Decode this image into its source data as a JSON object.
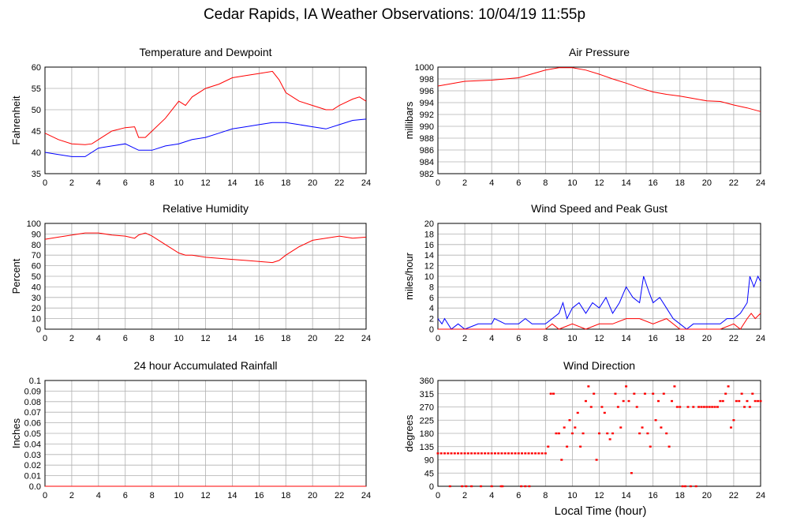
{
  "title": "Cedar Rapids, IA Weather Observations: 10/04/19 11:55p",
  "xlabel": "Local Time (hour)",
  "colors": {
    "red": "#ff0000",
    "blue": "#0000ff",
    "grid": "#b0b0b0"
  },
  "chart_data": [
    {
      "type": "line",
      "title": "Temperature and Dewpoint",
      "ylabel": "Fahrenheit",
      "xlim": [
        0,
        24
      ],
      "ylim": [
        35,
        60
      ],
      "yticks": [
        "35",
        "40",
        "45",
        "50",
        "55",
        "60"
      ],
      "xticks": [
        "0",
        "2",
        "4",
        "6",
        "8",
        "10",
        "12",
        "14",
        "16",
        "18",
        "20",
        "22",
        "24"
      ],
      "grid": true,
      "series": [
        {
          "color": "red",
          "x": [
            0,
            1,
            2,
            3,
            3.5,
            4,
            5,
            6,
            6.7,
            7,
            7.5,
            8,
            9,
            10,
            10.5,
            11,
            12,
            13,
            14,
            15,
            16,
            17,
            17.5,
            18,
            19,
            20,
            21,
            21.5,
            22,
            23,
            23.5,
            24
          ],
          "y": [
            44.5,
            43,
            42,
            41.8,
            42,
            43,
            45,
            45.8,
            46,
            43.5,
            43.5,
            45,
            48,
            52,
            51,
            53,
            55,
            56,
            57.5,
            58,
            58.5,
            59,
            57,
            54,
            52,
            51,
            50,
            50,
            51,
            52.5,
            53,
            52
          ]
        },
        {
          "color": "blue",
          "x": [
            0,
            1,
            2,
            3,
            4,
            5,
            6,
            7,
            8,
            9,
            10,
            11,
            12,
            13,
            14,
            15,
            16,
            17,
            18,
            19,
            20,
            21,
            22,
            23,
            24
          ],
          "y": [
            40,
            39.5,
            39,
            39,
            41,
            41.5,
            42,
            40.5,
            40.5,
            41.5,
            42,
            43,
            43.5,
            44.5,
            45.5,
            46,
            46.5,
            47,
            47,
            46.5,
            46,
            45.5,
            46.5,
            47.5,
            47.8
          ]
        }
      ]
    },
    {
      "type": "line",
      "title": "Air Pressure",
      "ylabel": "millibars",
      "xlim": [
        0,
        24
      ],
      "ylim": [
        982,
        1000
      ],
      "yticks": [
        "982",
        "984",
        "986",
        "988",
        "990",
        "992",
        "994",
        "996",
        "998",
        "1000"
      ],
      "xticks": [
        "0",
        "2",
        "4",
        "6",
        "8",
        "10",
        "12",
        "14",
        "16",
        "18",
        "20",
        "22",
        "24"
      ],
      "grid": true,
      "series": [
        {
          "color": "red",
          "x": [
            0,
            2,
            4,
            6,
            8,
            9,
            10,
            11,
            12,
            13,
            14,
            15,
            16,
            17,
            18,
            19,
            20,
            21,
            22,
            23,
            24
          ],
          "y": [
            996.8,
            997.6,
            997.8,
            998.2,
            999.5,
            999.9,
            999.9,
            999.5,
            998.8,
            998.0,
            997.3,
            996.5,
            995.8,
            995.4,
            995.1,
            994.7,
            994.3,
            994.2,
            993.6,
            993.1,
            992.5
          ]
        }
      ]
    },
    {
      "type": "line",
      "title": "Relative Humidity",
      "ylabel": "Percent",
      "xlim": [
        0,
        24
      ],
      "ylim": [
        0,
        100
      ],
      "yticks": [
        "0",
        "10",
        "20",
        "30",
        "40",
        "50",
        "60",
        "70",
        "80",
        "90",
        "100"
      ],
      "xticks": [
        "0",
        "2",
        "4",
        "6",
        "8",
        "10",
        "12",
        "14",
        "16",
        "18",
        "20",
        "22",
        "24"
      ],
      "grid": true,
      "series": [
        {
          "color": "red",
          "x": [
            0,
            1,
            2,
            3,
            4,
            5,
            6,
            6.7,
            7,
            7.5,
            8,
            9,
            10,
            10.5,
            11,
            12,
            13,
            14,
            15,
            16,
            17,
            17.5,
            18,
            19,
            20,
            21,
            22,
            23,
            24
          ],
          "y": [
            85,
            87,
            89,
            91,
            91,
            89,
            88,
            86,
            89,
            91,
            88,
            80,
            72,
            70,
            70,
            68,
            67,
            66,
            65,
            64,
            63,
            65,
            70,
            78,
            84,
            86,
            88,
            86,
            87
          ]
        }
      ]
    },
    {
      "type": "line",
      "title": "Wind Speed and Peak Gust",
      "ylabel": "miles/hour",
      "xlim": [
        0,
        24
      ],
      "ylim": [
        0,
        20
      ],
      "yticks": [
        "0",
        "2",
        "4",
        "6",
        "8",
        "10",
        "12",
        "14",
        "16",
        "18",
        "20"
      ],
      "xticks": [
        "0",
        "2",
        "4",
        "6",
        "8",
        "10",
        "12",
        "14",
        "16",
        "18",
        "20",
        "22",
        "24"
      ],
      "grid": true,
      "series": [
        {
          "color": "blue",
          "x": [
            0,
            0.3,
            0.5,
            1,
            1.5,
            2,
            3,
            4,
            4.2,
            5,
            6,
            6.5,
            7,
            8,
            8.5,
            9,
            9.3,
            9.6,
            10,
            10.5,
            11,
            11.5,
            12,
            12.5,
            13,
            13.5,
            14,
            14.5,
            15,
            15.3,
            15.7,
            16,
            16.5,
            17,
            17.5,
            18,
            18.5,
            19,
            20,
            21,
            21.5,
            22,
            22.5,
            23,
            23.2,
            23.5,
            23.8,
            24
          ],
          "y": [
            2,
            1,
            2,
            0,
            1,
            0,
            1,
            1,
            2,
            1,
            1,
            2,
            1,
            1,
            2,
            3,
            5,
            2,
            4,
            5,
            3,
            5,
            4,
            6,
            3,
            5,
            8,
            6,
            5,
            10,
            7,
            5,
            6,
            4,
            2,
            1,
            0,
            1,
            1,
            1,
            2,
            2,
            3,
            5,
            10,
            8,
            10,
            9
          ]
        },
        {
          "color": "red",
          "x": [
            0,
            8,
            8.5,
            9,
            10,
            11,
            12,
            13,
            14,
            15,
            16,
            17,
            18,
            19,
            20,
            21,
            22,
            22.5,
            23,
            23.3,
            23.6,
            24
          ],
          "y": [
            0,
            0,
            1,
            0,
            1,
            0,
            1,
            1,
            2,
            2,
            1,
            2,
            0,
            0,
            0,
            0,
            1,
            0,
            2,
            3,
            2,
            3
          ]
        }
      ]
    },
    {
      "type": "line",
      "title": "24 hour Accumulated Rainfall",
      "ylabel": "Inches",
      "xlim": [
        0,
        24
      ],
      "ylim": [
        0,
        0.1
      ],
      "yticks": [
        "0.0",
        "0.01",
        "0.02",
        "0.03",
        "0.04",
        "0.05",
        "0.06",
        "0.07",
        "0.08",
        "0.09",
        "0.1"
      ],
      "xticks": [
        "0",
        "2",
        "4",
        "6",
        "8",
        "10",
        "12",
        "14",
        "16",
        "18",
        "20",
        "22",
        "24"
      ],
      "grid": true,
      "series": [
        {
          "color": "red",
          "x": [
            0,
            24
          ],
          "y": [
            0,
            0
          ]
        }
      ]
    },
    {
      "type": "scatter",
      "title": "Wind Direction",
      "ylabel": "degrees",
      "xlim": [
        0,
        24
      ],
      "ylim": [
        0,
        360
      ],
      "yticks": [
        "0",
        "45",
        "90",
        "135",
        "180",
        "225",
        "270",
        "315",
        "360"
      ],
      "xticks": [
        "0",
        "2",
        "4",
        "6",
        "8",
        "10",
        "12",
        "14",
        "16",
        "18",
        "20",
        "22",
        "24"
      ],
      "grid": true,
      "series": [
        {
          "color": "red",
          "x": [
            0,
            0.25,
            0.5,
            0.75,
            1,
            1.25,
            1.5,
            1.75,
            2,
            2.25,
            2.5,
            2.75,
            3,
            3.25,
            3.5,
            3.75,
            4,
            4.25,
            4.5,
            4.75,
            5,
            5.25,
            5.5,
            5.75,
            6,
            6.25,
            6.5,
            6.75,
            7,
            7.25,
            7.5,
            7.75,
            8,
            0.9,
            1.8,
            2.1,
            2.5,
            3.2,
            4.0,
            4.7,
            4.8,
            6.2,
            6.5,
            6.8,
            8.2,
            8.4,
            8.6,
            8.8,
            9.0,
            9.2,
            9.4,
            9.6,
            9.8,
            10.0,
            10.2,
            10.4,
            10.6,
            10.8,
            11.0,
            11.2,
            11.4,
            11.6,
            11.8,
            12.0,
            12.2,
            12.4,
            12.6,
            12.8,
            13.0,
            13.2,
            13.4,
            13.6,
            13.8,
            14.0,
            14.2,
            14.4,
            14.6,
            14.8,
            15.0,
            15.2,
            15.4,
            15.6,
            15.8,
            16.0,
            16.2,
            16.4,
            16.6,
            16.8,
            17.0,
            17.2,
            17.4,
            17.6,
            17.8,
            18.0,
            18.2,
            18.4,
            18.6,
            18.8,
            19.0,
            19.2,
            19.4,
            19.6,
            19.8,
            20.0,
            20.2,
            20.4,
            20.6,
            20.8,
            21.0,
            21.2,
            21.4,
            21.6,
            21.8,
            22.0,
            22.2,
            22.4,
            22.6,
            22.8,
            23.0,
            23.2,
            23.4,
            23.6,
            23.8,
            24.0
          ],
          "y": [
            112,
            112,
            112,
            112,
            112,
            112,
            112,
            112,
            112,
            112,
            112,
            112,
            112,
            112,
            112,
            112,
            112,
            112,
            112,
            112,
            112,
            112,
            112,
            112,
            112,
            112,
            112,
            112,
            112,
            112,
            112,
            112,
            112,
            0,
            0,
            0,
            0,
            0,
            0,
            0,
            0,
            0,
            0,
            0,
            135,
            315,
            315,
            180,
            180,
            90,
            200,
            135,
            225,
            180,
            200,
            250,
            135,
            180,
            290,
            340,
            270,
            315,
            90,
            180,
            270,
            250,
            180,
            160,
            180,
            315,
            270,
            200,
            290,
            340,
            290,
            45,
            315,
            270,
            180,
            200,
            315,
            180,
            135,
            315,
            225,
            290,
            200,
            315,
            180,
            135,
            290,
            340,
            270,
            270,
            0,
            0,
            270,
            0,
            270,
            0,
            270,
            270,
            270,
            270,
            270,
            270,
            270,
            270,
            290,
            290,
            315,
            340,
            200,
            225,
            290,
            290,
            315,
            270,
            290,
            270,
            315,
            290,
            290,
            290
          ]
        }
      ]
    }
  ]
}
